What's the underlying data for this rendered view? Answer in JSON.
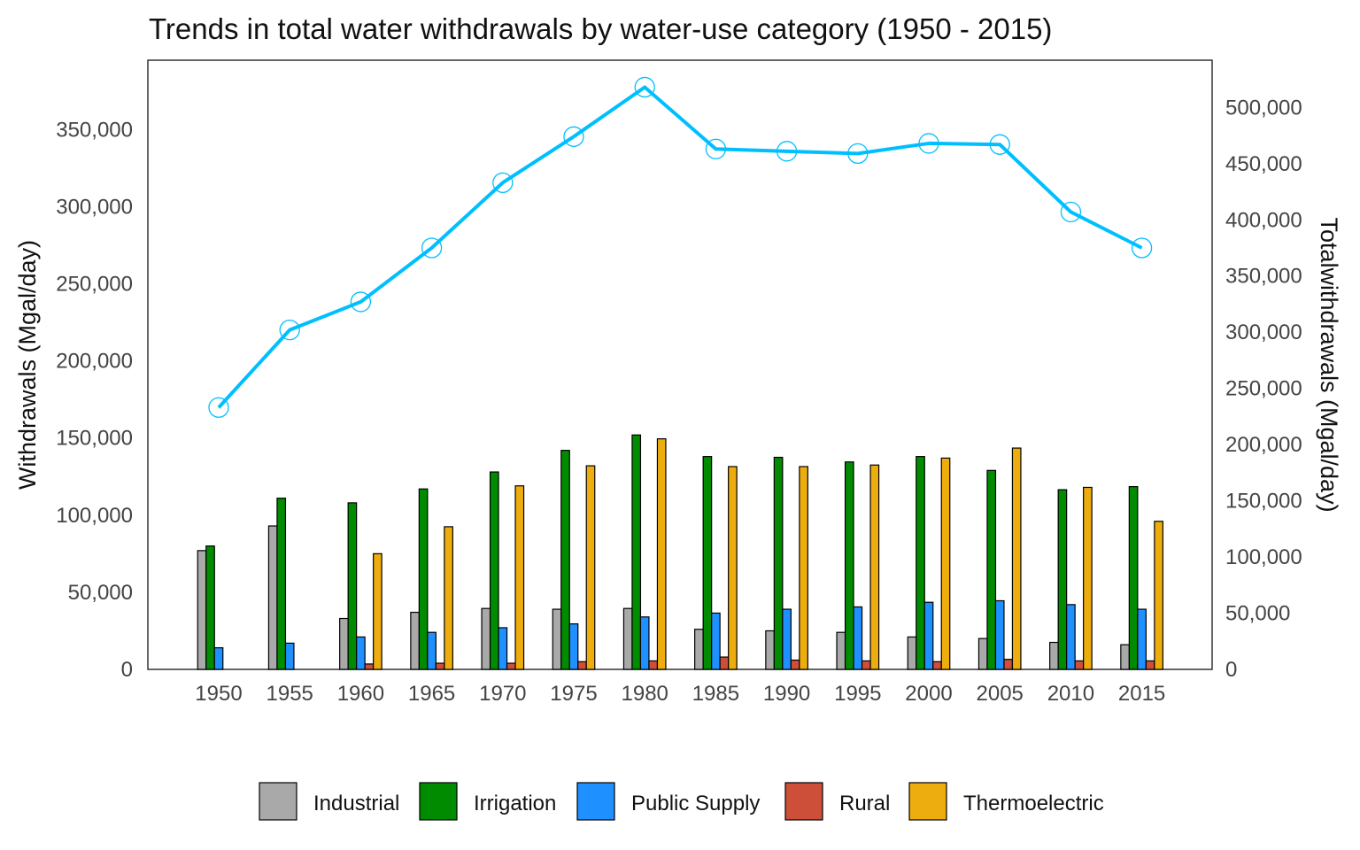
{
  "chart_data": {
    "type": "bar",
    "title": "Trends in total water withdrawals by water-use category (1950 - 2015)",
    "xlabel": "",
    "ylabel": "Withdrawals (Mgal/day)",
    "y2label": "Totalwithdrawals (Mgal/day)",
    "categories": [
      "1950",
      "1955",
      "1960",
      "1965",
      "1970",
      "1975",
      "1980",
      "1985",
      "1990",
      "1995",
      "2000",
      "2005",
      "2010",
      "2015"
    ],
    "ylim": [
      0,
      395000
    ],
    "y_ticks": [
      0,
      50000,
      100000,
      150000,
      200000,
      250000,
      300000,
      350000
    ],
    "y_tick_labels": [
      "0",
      "50,000",
      "100,000",
      "150,000",
      "200,000",
      "250,000",
      "300,000",
      "350,000"
    ],
    "y2lim": [
      0,
      542000
    ],
    "y2_ticks": [
      0,
      50000,
      100000,
      150000,
      200000,
      250000,
      300000,
      350000,
      400000,
      450000,
      500000
    ],
    "y2_tick_labels": [
      "0",
      "50,000",
      "100,000",
      "150,000",
      "200,000",
      "250,000",
      "300,000",
      "350,000",
      "400,000",
      "450,000",
      "500,000"
    ],
    "grid": false,
    "legend_position": "bottom",
    "series": [
      {
        "name": "Industrial",
        "color": "#A9A9A9",
        "values": [
          77000,
          93000,
          33000,
          37000,
          39500,
          39000,
          39500,
          26000,
          25000,
          24000,
          21000,
          20000,
          17500,
          16000
        ]
      },
      {
        "name": "Irrigation",
        "color": "#008B00",
        "values": [
          80000,
          111000,
          108000,
          117000,
          128000,
          142000,
          152000,
          138000,
          137500,
          134500,
          138000,
          129000,
          116500,
          118500
        ]
      },
      {
        "name": "Public Supply",
        "color": "#1E90FF",
        "values": [
          14000,
          17000,
          21000,
          24000,
          27000,
          29500,
          34000,
          36500,
          39000,
          40500,
          43500,
          44500,
          42000,
          39000
        ]
      },
      {
        "name": "Rural",
        "color": "#CD4F39",
        "values": [
          0,
          0,
          3500,
          4000,
          4000,
          5000,
          5500,
          8000,
          6000,
          5500,
          5000,
          6500,
          5500,
          5500
        ]
      },
      {
        "name": "Thermoelectric",
        "color": "#EEAD0E",
        "values": [
          0,
          0,
          75000,
          92500,
          119000,
          132000,
          149500,
          131500,
          131500,
          132500,
          137000,
          143500,
          118000,
          96000
        ]
      }
    ],
    "total_series": {
      "color": "#00BFFF",
      "axis": "right",
      "values": [
        233000,
        302000,
        327000,
        375000,
        433000,
        474000,
        518000,
        463000,
        461000,
        459000,
        468000,
        467000,
        407000,
        375000
      ]
    }
  }
}
